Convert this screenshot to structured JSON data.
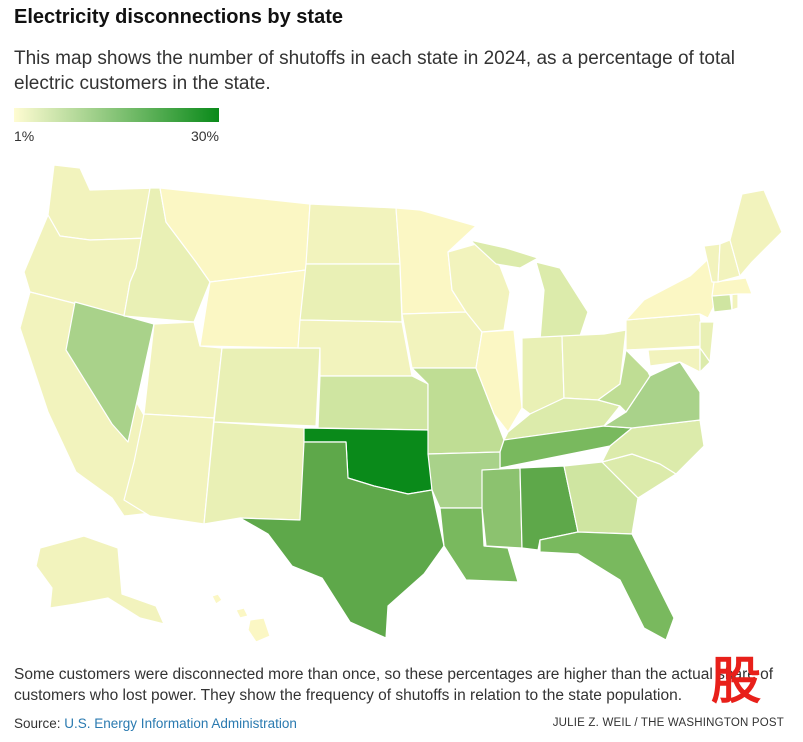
{
  "title": "Electricity disconnections by state",
  "subtitle": "This map shows the number of shutoffs in each state in 2024, as a percentage of total electric customers in the state.",
  "legend": {
    "min_label": "1%",
    "max_label": "30%",
    "min_color": "#fffcd2",
    "max_color": "#0a8a1a"
  },
  "note": "Some customers were disconnected more than once, so these percentages are higher than the actual share of customers who lost power. They show the frequency of shutoffs in relation to the state population.",
  "footer": {
    "source_prefix": "Source: ",
    "source_link": "U.S. Energy Information Administration",
    "credit": "JULIE Z. WEIL / THE WASHINGTON POST"
  },
  "colors": {
    "c1": "#fbf7c4",
    "c2": "#f2f3bd",
    "c3": "#e9f0b5",
    "c4": "#dcebab",
    "c5": "#cfe5a1",
    "c6": "#bfdd94",
    "c7": "#a9d28a",
    "c8": "#8cc26f",
    "c9": "#79b95e",
    "c10": "#5ea84a",
    "c11": "#0a8a1a",
    "border": "#ffffff"
  },
  "logo": {
    "glyph": "股"
  }
}
